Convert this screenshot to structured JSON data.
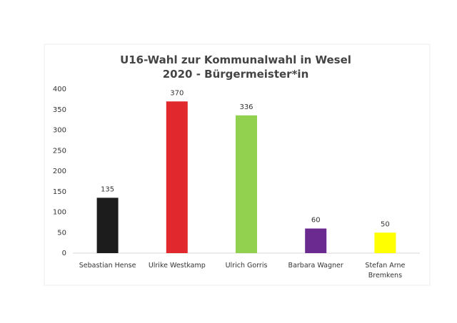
{
  "chart_data": {
    "type": "bar",
    "title": "U16-Wahl zur Kommunalwahl in Wesel 2020 - Bürgermeister*in",
    "categories": [
      "Sebastian Hense",
      "Ulrike Westkamp",
      "Ulrich Gorris",
      "Barbara Wagner",
      "Stefan Arne Bremkens"
    ],
    "values": [
      135,
      370,
      336,
      60,
      50
    ],
    "colors": [
      "#1c1c1c",
      "#e1282d",
      "#92d050",
      "#6b2a8f",
      "#ffff00"
    ],
    "ylim": [
      0,
      400
    ],
    "yticks": [
      0,
      50,
      100,
      150,
      200,
      250,
      300,
      350,
      400
    ],
    "grid": false
  }
}
